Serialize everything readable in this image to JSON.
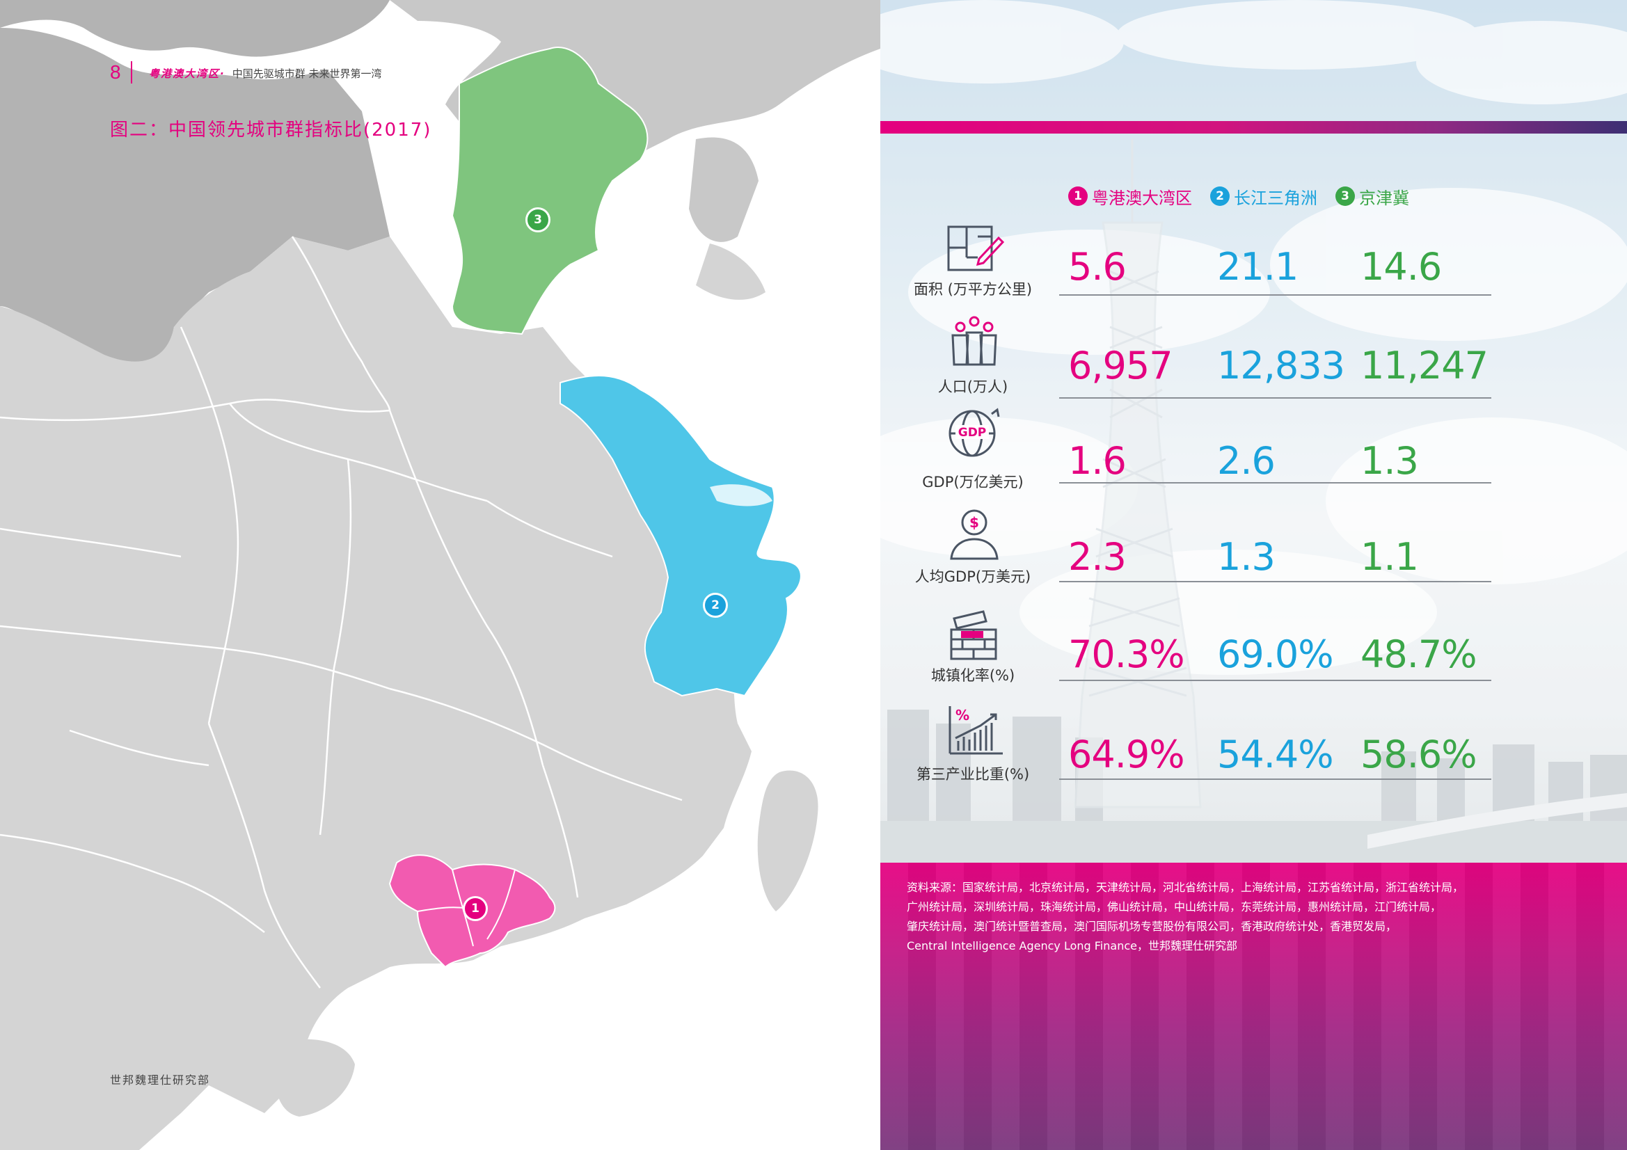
{
  "running_head": {
    "page_number": "8",
    "brand": "粤港澳大湾区·",
    "subtitle": "中国先驱城市群 未来世界第一湾"
  },
  "figure_title": "图二：中国领先城市群指标比(2017)",
  "footer": "世邦魏理仕研究部",
  "map": {
    "markers": [
      {
        "number": "1",
        "color": "#e4007f"
      },
      {
        "number": "2",
        "color": "#1aa2dc"
      },
      {
        "number": "3",
        "color": "#3aa648"
      }
    ],
    "region_colors": {
      "bay_area": "#f25bb0",
      "yangtze_delta": "#4fc6e8",
      "jingjinji": "#7fc57e",
      "land": "#d4d4d4",
      "north_land": "#b3b3b3"
    }
  },
  "legend": [
    {
      "number": "1",
      "label": "粤港澳大湾区",
      "color": "#e4007f"
    },
    {
      "number": "2",
      "label": "长江三角洲",
      "color": "#1aa2dc"
    },
    {
      "number": "3",
      "label": "京津冀",
      "color": "#3aa648"
    }
  ],
  "metrics": [
    {
      "label": "面积 (万平方公里)",
      "icon": "floorplan-pencil-icon",
      "values": [
        "5.6",
        "21.1",
        "14.6"
      ]
    },
    {
      "label": "人口(万人)",
      "icon": "population-icon",
      "values": [
        "6,957",
        "12,833",
        "11,247"
      ]
    },
    {
      "label": "GDP(万亿美元)",
      "icon": "gdp-globe-icon",
      "icon_text": "GDP",
      "values": [
        "1.6",
        "2.6",
        "1.3"
      ]
    },
    {
      "label": "人均GDP(万美元)",
      "icon": "per-capita-dollar-icon",
      "icon_text": "$",
      "values": [
        "2.3",
        "1.3",
        "1.1"
      ]
    },
    {
      "label": "城镇化率(%)",
      "icon": "urban-brick-icon",
      "values": [
        "70.3%",
        "69.0%",
        "48.7%"
      ]
    },
    {
      "label": "第三产业比重(%)",
      "icon": "tertiary-chart-icon",
      "icon_text": "%",
      "values": [
        "64.9%",
        "54.4%",
        "58.6%"
      ]
    }
  ],
  "value_colors": [
    "#e4007f",
    "#1aa2dc",
    "#3aa648"
  ],
  "source": {
    "lines": [
      "资料来源：国家统计局，北京统计局，天津统计局，河北省统计局，上海统计局，江苏省统计局，浙江省统计局，",
      "广州统计局，深圳统计局，珠海统计局，佛山统计局，中山统计局，东莞统计局，惠州统计局，江门统计局，",
      "肇庆统计局，澳门统计暨普查局，澳门国际机场专营股份有限公司，香港政府统计处，香港贸发局，",
      "Central Intelligence Agency Long Finance，世邦魏理仕研究部"
    ]
  }
}
